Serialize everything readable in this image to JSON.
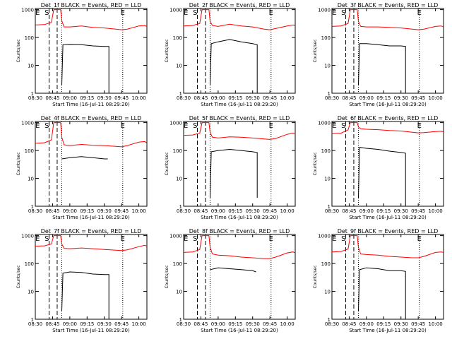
{
  "chart_data": {
    "type": "line",
    "grid": false,
    "x_ticks": [
      "08:30",
      "08:45",
      "09:00",
      "09:15",
      "09:30",
      "09:45",
      "10:00"
    ],
    "x_range": [
      "08:30",
      "10:07"
    ],
    "y_ticks": [
      "1",
      "10",
      "100",
      "1000"
    ],
    "y_scale": "log",
    "y_range": [
      1,
      1100
    ],
    "xlabel": "Start Time (16-Jul-11 08:29:20)",
    "ylabel": "Counts/sec",
    "colors": {
      "events": "#000000",
      "lld": "#ff0000"
    },
    "markers": {
      "dashed": [
        "08:42",
        "08:49"
      ],
      "dotted": [
        "08:53",
        "09:46",
        "10:07"
      ],
      "letters": [
        {
          "text": "E",
          "at": "08:32"
        },
        {
          "text": "S",
          "at": "08:40"
        },
        {
          "text": "E",
          "at": "09:46"
        }
      ]
    },
    "panels": [
      {
        "title": "Det_1f BLACK = Events, RED = LLD",
        "lld": [
          [
            "08:30",
            280
          ],
          [
            "08:38",
            290
          ],
          [
            "08:44",
            350
          ],
          [
            "08:46",
            1000
          ],
          [
            "08:52",
            1000
          ],
          [
            "08:53",
            400
          ],
          [
            "08:55",
            240
          ],
          [
            "09:00",
            240
          ],
          [
            "09:10",
            260
          ],
          [
            "09:20",
            230
          ],
          [
            "09:30",
            220
          ],
          [
            "09:40",
            200
          ],
          [
            "09:45",
            190
          ],
          [
            "09:50",
            200
          ],
          [
            "10:00",
            260
          ],
          [
            "10:05",
            270
          ],
          [
            "10:07",
            250
          ]
        ],
        "events": [
          [
            "08:53",
            2
          ],
          [
            "08:54",
            55
          ],
          [
            "09:00",
            56
          ],
          [
            "09:10",
            55
          ],
          [
            "09:20",
            50
          ],
          [
            "09:30",
            48
          ],
          [
            "09:34",
            48
          ],
          [
            "09:34",
            1
          ]
        ]
      },
      {
        "title": "Det_2f BLACK = Events, RED = LLD",
        "lld": [
          [
            "08:30",
            260
          ],
          [
            "08:38",
            270
          ],
          [
            "08:44",
            320
          ],
          [
            "08:46",
            1000
          ],
          [
            "08:52",
            1000
          ],
          [
            "08:53",
            380
          ],
          [
            "08:55",
            270
          ],
          [
            "09:00",
            250
          ],
          [
            "09:10",
            300
          ],
          [
            "09:20",
            260
          ],
          [
            "09:30",
            240
          ],
          [
            "09:40",
            200
          ],
          [
            "09:45",
            190
          ],
          [
            "09:50",
            210
          ],
          [
            "10:00",
            260
          ],
          [
            "10:05",
            280
          ],
          [
            "10:07",
            270
          ]
        ],
        "events": [
          [
            "08:53",
            2
          ],
          [
            "08:54",
            60
          ],
          [
            "09:00",
            70
          ],
          [
            "09:10",
            85
          ],
          [
            "09:20",
            70
          ],
          [
            "09:30",
            60
          ],
          [
            "09:34",
            55
          ],
          [
            "09:34",
            1
          ]
        ]
      },
      {
        "title": "Det_3f BLACK = Events, RED = LLD",
        "lld": [
          [
            "08:30",
            250
          ],
          [
            "08:38",
            260
          ],
          [
            "08:44",
            320
          ],
          [
            "08:46",
            1000
          ],
          [
            "08:52",
            1000
          ],
          [
            "08:53",
            380
          ],
          [
            "08:55",
            250
          ],
          [
            "09:00",
            240
          ],
          [
            "09:10",
            240
          ],
          [
            "09:20",
            230
          ],
          [
            "09:30",
            220
          ],
          [
            "09:40",
            200
          ],
          [
            "09:45",
            190
          ],
          [
            "09:50",
            200
          ],
          [
            "10:00",
            250
          ],
          [
            "10:05",
            260
          ],
          [
            "10:07",
            240
          ]
        ],
        "events": [
          [
            "08:53",
            2
          ],
          [
            "08:54",
            60
          ],
          [
            "09:00",
            60
          ],
          [
            "09:10",
            55
          ],
          [
            "09:20",
            50
          ],
          [
            "09:30",
            50
          ],
          [
            "09:34",
            48
          ],
          [
            "09:34",
            1
          ]
        ]
      },
      {
        "title": "Det_4f BLACK = Events, RED = LLD",
        "lld": [
          [
            "08:30",
            180
          ],
          [
            "08:38",
            190
          ],
          [
            "08:44",
            240
          ],
          [
            "08:46",
            1000
          ],
          [
            "08:52",
            1000
          ],
          [
            "08:53",
            300
          ],
          [
            "08:55",
            160
          ],
          [
            "09:00",
            150
          ],
          [
            "09:10",
            165
          ],
          [
            "09:20",
            155
          ],
          [
            "09:30",
            150
          ],
          [
            "09:40",
            140
          ],
          [
            "09:45",
            135
          ],
          [
            "09:50",
            150
          ],
          [
            "10:00",
            200
          ],
          [
            "10:05",
            210
          ],
          [
            "10:07",
            190
          ]
        ],
        "events": [
          [
            "08:53",
            50
          ],
          [
            "09:00",
            55
          ],
          [
            "09:10",
            60
          ],
          [
            "09:20",
            55
          ],
          [
            "09:30",
            50
          ],
          [
            "09:33",
            50
          ]
        ]
      },
      {
        "title": "Det_5f BLACK = Events, RED = LLD",
        "lld": [
          [
            "08:30",
            350
          ],
          [
            "08:38",
            360
          ],
          [
            "08:44",
            420
          ],
          [
            "08:46",
            1000
          ],
          [
            "08:52",
            1000
          ],
          [
            "08:53",
            450
          ],
          [
            "08:55",
            300
          ],
          [
            "09:00",
            280
          ],
          [
            "09:10",
            310
          ],
          [
            "09:20",
            300
          ],
          [
            "09:30",
            280
          ],
          [
            "09:40",
            260
          ],
          [
            "09:45",
            250
          ],
          [
            "09:50",
            270
          ],
          [
            "10:00",
            380
          ],
          [
            "10:05",
            420
          ],
          [
            "10:07",
            400
          ]
        ],
        "events": [
          [
            "08:53",
            2
          ],
          [
            "08:54",
            90
          ],
          [
            "09:00",
            100
          ],
          [
            "09:10",
            110
          ],
          [
            "09:20",
            100
          ],
          [
            "09:30",
            90
          ],
          [
            "09:34",
            85
          ],
          [
            "09:34",
            2
          ]
        ]
      },
      {
        "title": "Det_6f BLACK = Events, RED = LLD",
        "lld": [
          [
            "08:30",
            400
          ],
          [
            "08:38",
            420
          ],
          [
            "08:44",
            550
          ],
          [
            "08:46",
            1000
          ],
          [
            "08:52",
            1000
          ],
          [
            "08:53",
            700
          ],
          [
            "08:55",
            600
          ],
          [
            "09:00",
            580
          ],
          [
            "09:10",
            560
          ],
          [
            "09:20",
            520
          ],
          [
            "09:30",
            500
          ],
          [
            "09:40",
            450
          ],
          [
            "09:45",
            430
          ],
          [
            "09:50",
            440
          ],
          [
            "10:00",
            480
          ],
          [
            "10:05",
            490
          ],
          [
            "10:07",
            470
          ]
        ],
        "events": [
          [
            "08:53",
            2
          ],
          [
            "08:54",
            130
          ],
          [
            "09:00",
            120
          ],
          [
            "09:10",
            110
          ],
          [
            "09:20",
            95
          ],
          [
            "09:30",
            85
          ],
          [
            "09:34",
            80
          ],
          [
            "09:34",
            1
          ]
        ]
      },
      {
        "title": "Det_7f BLACK = Events, RED = LLD",
        "lld": [
          [
            "08:30",
            420
          ],
          [
            "08:38",
            430
          ],
          [
            "08:44",
            500
          ],
          [
            "08:46",
            1000
          ],
          [
            "08:52",
            1000
          ],
          [
            "08:53",
            500
          ],
          [
            "08:55",
            350
          ],
          [
            "09:00",
            340
          ],
          [
            "09:10",
            360
          ],
          [
            "09:20",
            340
          ],
          [
            "09:30",
            320
          ],
          [
            "09:40",
            300
          ],
          [
            "09:45",
            290
          ],
          [
            "09:50",
            310
          ],
          [
            "10:00",
            400
          ],
          [
            "10:05",
            450
          ],
          [
            "10:07",
            420
          ]
        ],
        "events": [
          [
            "08:53",
            2
          ],
          [
            "08:54",
            45
          ],
          [
            "09:00",
            50
          ],
          [
            "09:10",
            48
          ],
          [
            "09:20",
            42
          ],
          [
            "09:30",
            40
          ],
          [
            "09:34",
            40
          ],
          [
            "09:34",
            1
          ]
        ]
      },
      {
        "title": "Det_8f BLACK = Events, RED = LLD",
        "lld": [
          [
            "08:30",
            250
          ],
          [
            "08:38",
            260
          ],
          [
            "08:44",
            320
          ],
          [
            "08:46",
            1000
          ],
          [
            "08:52",
            1000
          ],
          [
            "08:53",
            380
          ],
          [
            "08:55",
            220
          ],
          [
            "09:00",
            200
          ],
          [
            "09:10",
            190
          ],
          [
            "09:20",
            170
          ],
          [
            "09:30",
            160
          ],
          [
            "09:40",
            150
          ],
          [
            "09:45",
            150
          ],
          [
            "09:50",
            170
          ],
          [
            "10:00",
            240
          ],
          [
            "10:05",
            260
          ],
          [
            "10:07",
            240
          ]
        ],
        "events": [
          [
            "08:53",
            60
          ],
          [
            "09:00",
            70
          ],
          [
            "09:10",
            65
          ],
          [
            "09:20",
            60
          ],
          [
            "09:30",
            55
          ],
          [
            "09:33",
            50
          ]
        ]
      },
      {
        "title": "Det_9f BLACK = Events, RED = LLD",
        "lld": [
          [
            "08:30",
            260
          ],
          [
            "08:38",
            270
          ],
          [
            "08:44",
            330
          ],
          [
            "08:46",
            1000
          ],
          [
            "08:52",
            1000
          ],
          [
            "08:53",
            380
          ],
          [
            "08:55",
            220
          ],
          [
            "09:00",
            210
          ],
          [
            "09:10",
            200
          ],
          [
            "09:20",
            180
          ],
          [
            "09:30",
            170
          ],
          [
            "09:40",
            160
          ],
          [
            "09:45",
            160
          ],
          [
            "09:50",
            180
          ],
          [
            "10:00",
            250
          ],
          [
            "10:05",
            260
          ],
          [
            "10:07",
            250
          ]
        ],
        "events": [
          [
            "08:53",
            2
          ],
          [
            "08:54",
            60
          ],
          [
            "09:00",
            70
          ],
          [
            "09:10",
            65
          ],
          [
            "09:20",
            55
          ],
          [
            "09:30",
            55
          ],
          [
            "09:34",
            52
          ],
          [
            "09:34",
            1
          ]
        ]
      }
    ]
  }
}
